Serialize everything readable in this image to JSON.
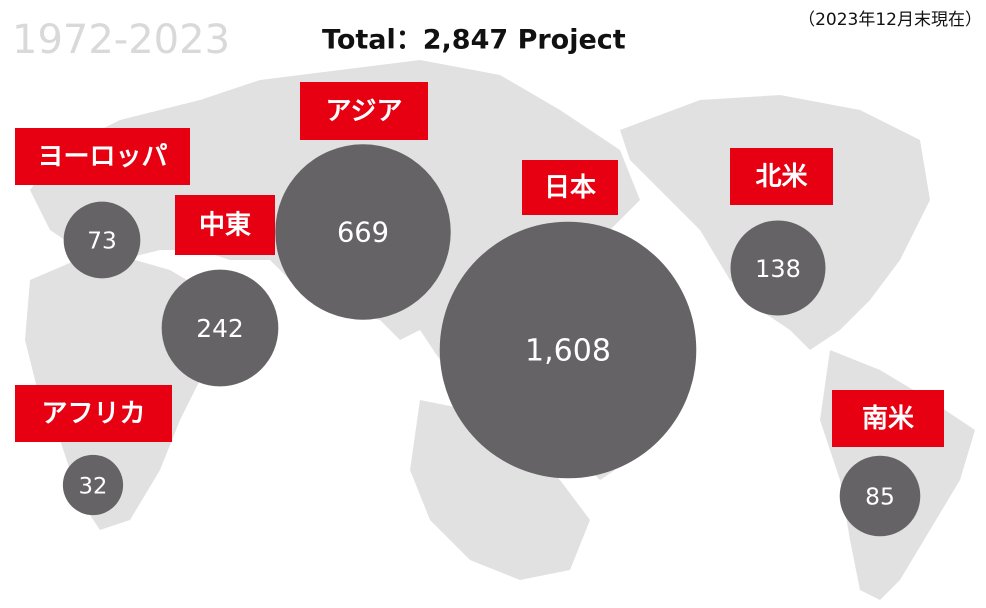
{
  "chart_data": {
    "type": "bubble",
    "period": "1972-2023",
    "title": "Total：2,847 Project",
    "note": "（2023年12月末現在）",
    "categories": [
      "ヨーロッパ",
      "中東",
      "アジア",
      "日本",
      "北米",
      "アフリカ",
      "南米"
    ],
    "values": [
      73,
      242,
      669,
      1608,
      138,
      32,
      85
    ],
    "value_labels": [
      "73",
      "242",
      "669",
      "1,608",
      "138",
      "32",
      "85"
    ],
    "color": "#656366",
    "label_color": "#e60012"
  }
}
